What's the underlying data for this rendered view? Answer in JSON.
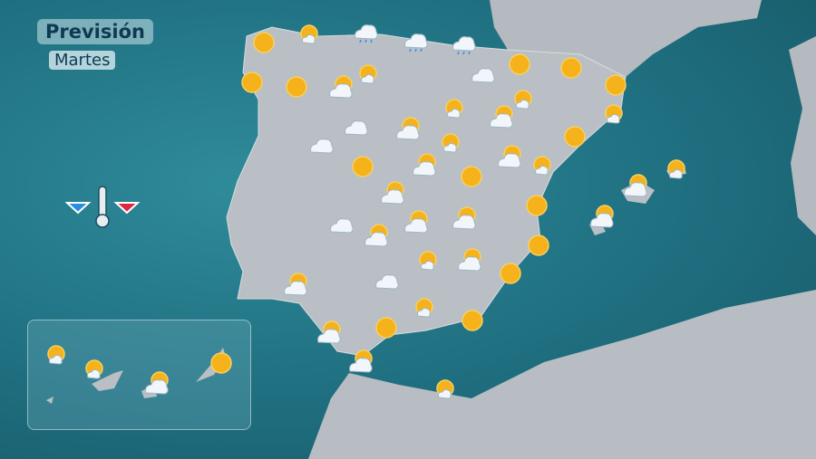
{
  "title": "Previsión",
  "subtitle": "Martes",
  "legend": {
    "icon": "thermometer-icon",
    "min_color": "#2a8ee0",
    "max_color": "#e0283c"
  },
  "colors": {
    "sea": "#1f6f80",
    "land": "#b9bfc4",
    "sun": "#f5b21a",
    "cloud": "#f2f6fa"
  },
  "forecast_icons": [
    "sun",
    "sun-cloud",
    "cloud-rain",
    "cloud-rain",
    "cloud-rain",
    "sun",
    "sun",
    "cloud-sun",
    "sun-cloud",
    "cloud",
    "sun",
    "sun",
    "sun",
    "sun-cloud",
    "cloud",
    "cloud-sun",
    "sun-cloud",
    "cloud-sun",
    "sun-cloud",
    "cloud",
    "sun-cloud",
    "sun",
    "sun",
    "cloud-sun",
    "sun",
    "cloud-sun",
    "sun-cloud",
    "cloud-sun",
    "sun",
    "cloud-sun",
    "sun-cloud",
    "cloud",
    "cloud-sun",
    "cloud-sun",
    "cloud-sun",
    "cloud-sun",
    "sun",
    "cloud-sun",
    "cloud",
    "sun-cloud",
    "cloud-sun",
    "sun",
    "sun-cloud",
    "sun",
    "sun",
    "cloud-sun",
    "cloud-sun",
    "sun-cloud"
  ],
  "canary_icons": [
    "sun-cloud",
    "sun-cloud",
    "cloud-sun",
    "sun"
  ]
}
